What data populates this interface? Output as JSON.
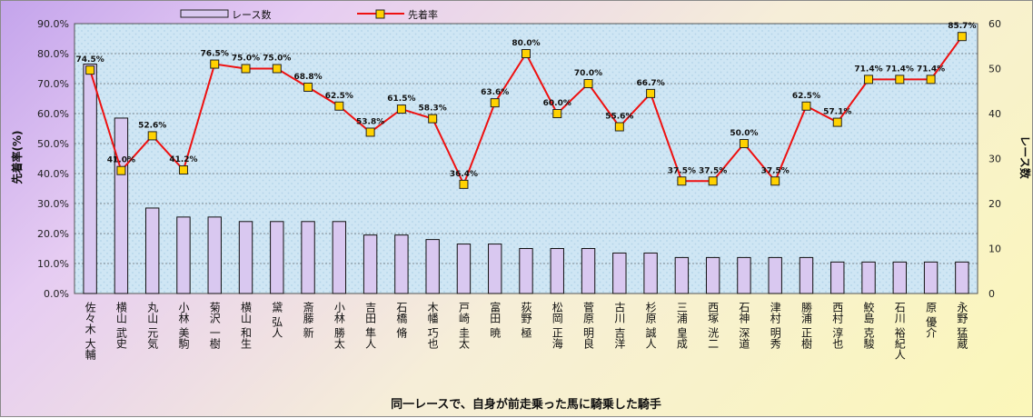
{
  "chart_data": {
    "type": "bar+line",
    "title": "",
    "xlabel": "同一レースで、自身が前走乗った馬に騎乗した騎手",
    "ylabel_left": "先着率(%)",
    "ylabel_right": "レース数",
    "ylim_left": [
      0,
      90
    ],
    "ylim_right": [
      0,
      60
    ],
    "left_ticks": [
      "0.0%",
      "10.0%",
      "20.0%",
      "30.0%",
      "40.0%",
      "50.0%",
      "60.0%",
      "70.0%",
      "80.0%",
      "90.0%"
    ],
    "right_ticks": [
      "0",
      "10",
      "20",
      "30",
      "40",
      "50",
      "60"
    ],
    "grid": true,
    "legend_position": "top",
    "categories": [
      "佐々木 大輔",
      "横山 武史",
      "丸山 元気",
      "小林 美駒",
      "菊沢 一樹",
      "横山 和生",
      "黛 弘人",
      "斎藤 新",
      "小林 勝太",
      "吉田 隼人",
      "石橋 脩",
      "木幡 巧也",
      "戸崎 圭太",
      "富田 暁",
      "荻野 極",
      "松岡 正海",
      "菅原 明良",
      "古川 吉洋",
      "杉原 誠人",
      "三浦 皇成",
      "西塚 洸二",
      "石神 深道",
      "津村 明秀",
      "勝浦 正樹",
      "西村 淳也",
      "鮫島 克駿",
      "石川 裕紀人",
      "原 優介",
      "永野 猛蔵"
    ],
    "series": [
      {
        "name": "レース数",
        "kind": "bar",
        "axis": "right",
        "color": "#d9c8f0",
        "values": [
          51,
          39,
          19,
          17,
          17,
          16,
          16,
          16,
          16,
          13,
          13,
          12,
          11,
          11,
          10,
          10,
          10,
          9,
          9,
          8,
          8,
          8,
          8,
          8,
          7,
          7,
          7,
          7,
          7
        ]
      },
      {
        "name": "先着率",
        "kind": "line",
        "axis": "left",
        "color": "#ee1111",
        "marker_color": "#ffd200",
        "values": [
          74.5,
          41.0,
          52.6,
          41.2,
          76.5,
          75.0,
          75.0,
          68.8,
          62.5,
          53.8,
          61.5,
          58.3,
          36.4,
          63.6,
          80.0,
          60.0,
          70.0,
          55.6,
          66.7,
          37.5,
          37.5,
          50.0,
          37.5,
          62.5,
          57.1,
          71.4,
          71.4,
          71.4,
          85.7
        ],
        "labels": [
          "74.5%",
          "41.0%",
          "52.6%",
          "41.2%",
          "76.5%",
          "75.0%",
          "75.0%",
          "68.8%",
          "62.5%",
          "53.8%",
          "61.5%",
          "58.3%",
          "36.4%",
          "63.6%",
          "80.0%",
          "60.0%",
          "70.0%",
          "55.6%",
          "66.7%",
          "37.5%",
          "37.5%",
          "50.0%",
          "37.5%",
          "62.5%",
          "57.1%",
          "71.4%",
          "71.4%",
          "71.4%",
          "85.7%"
        ]
      }
    ]
  }
}
